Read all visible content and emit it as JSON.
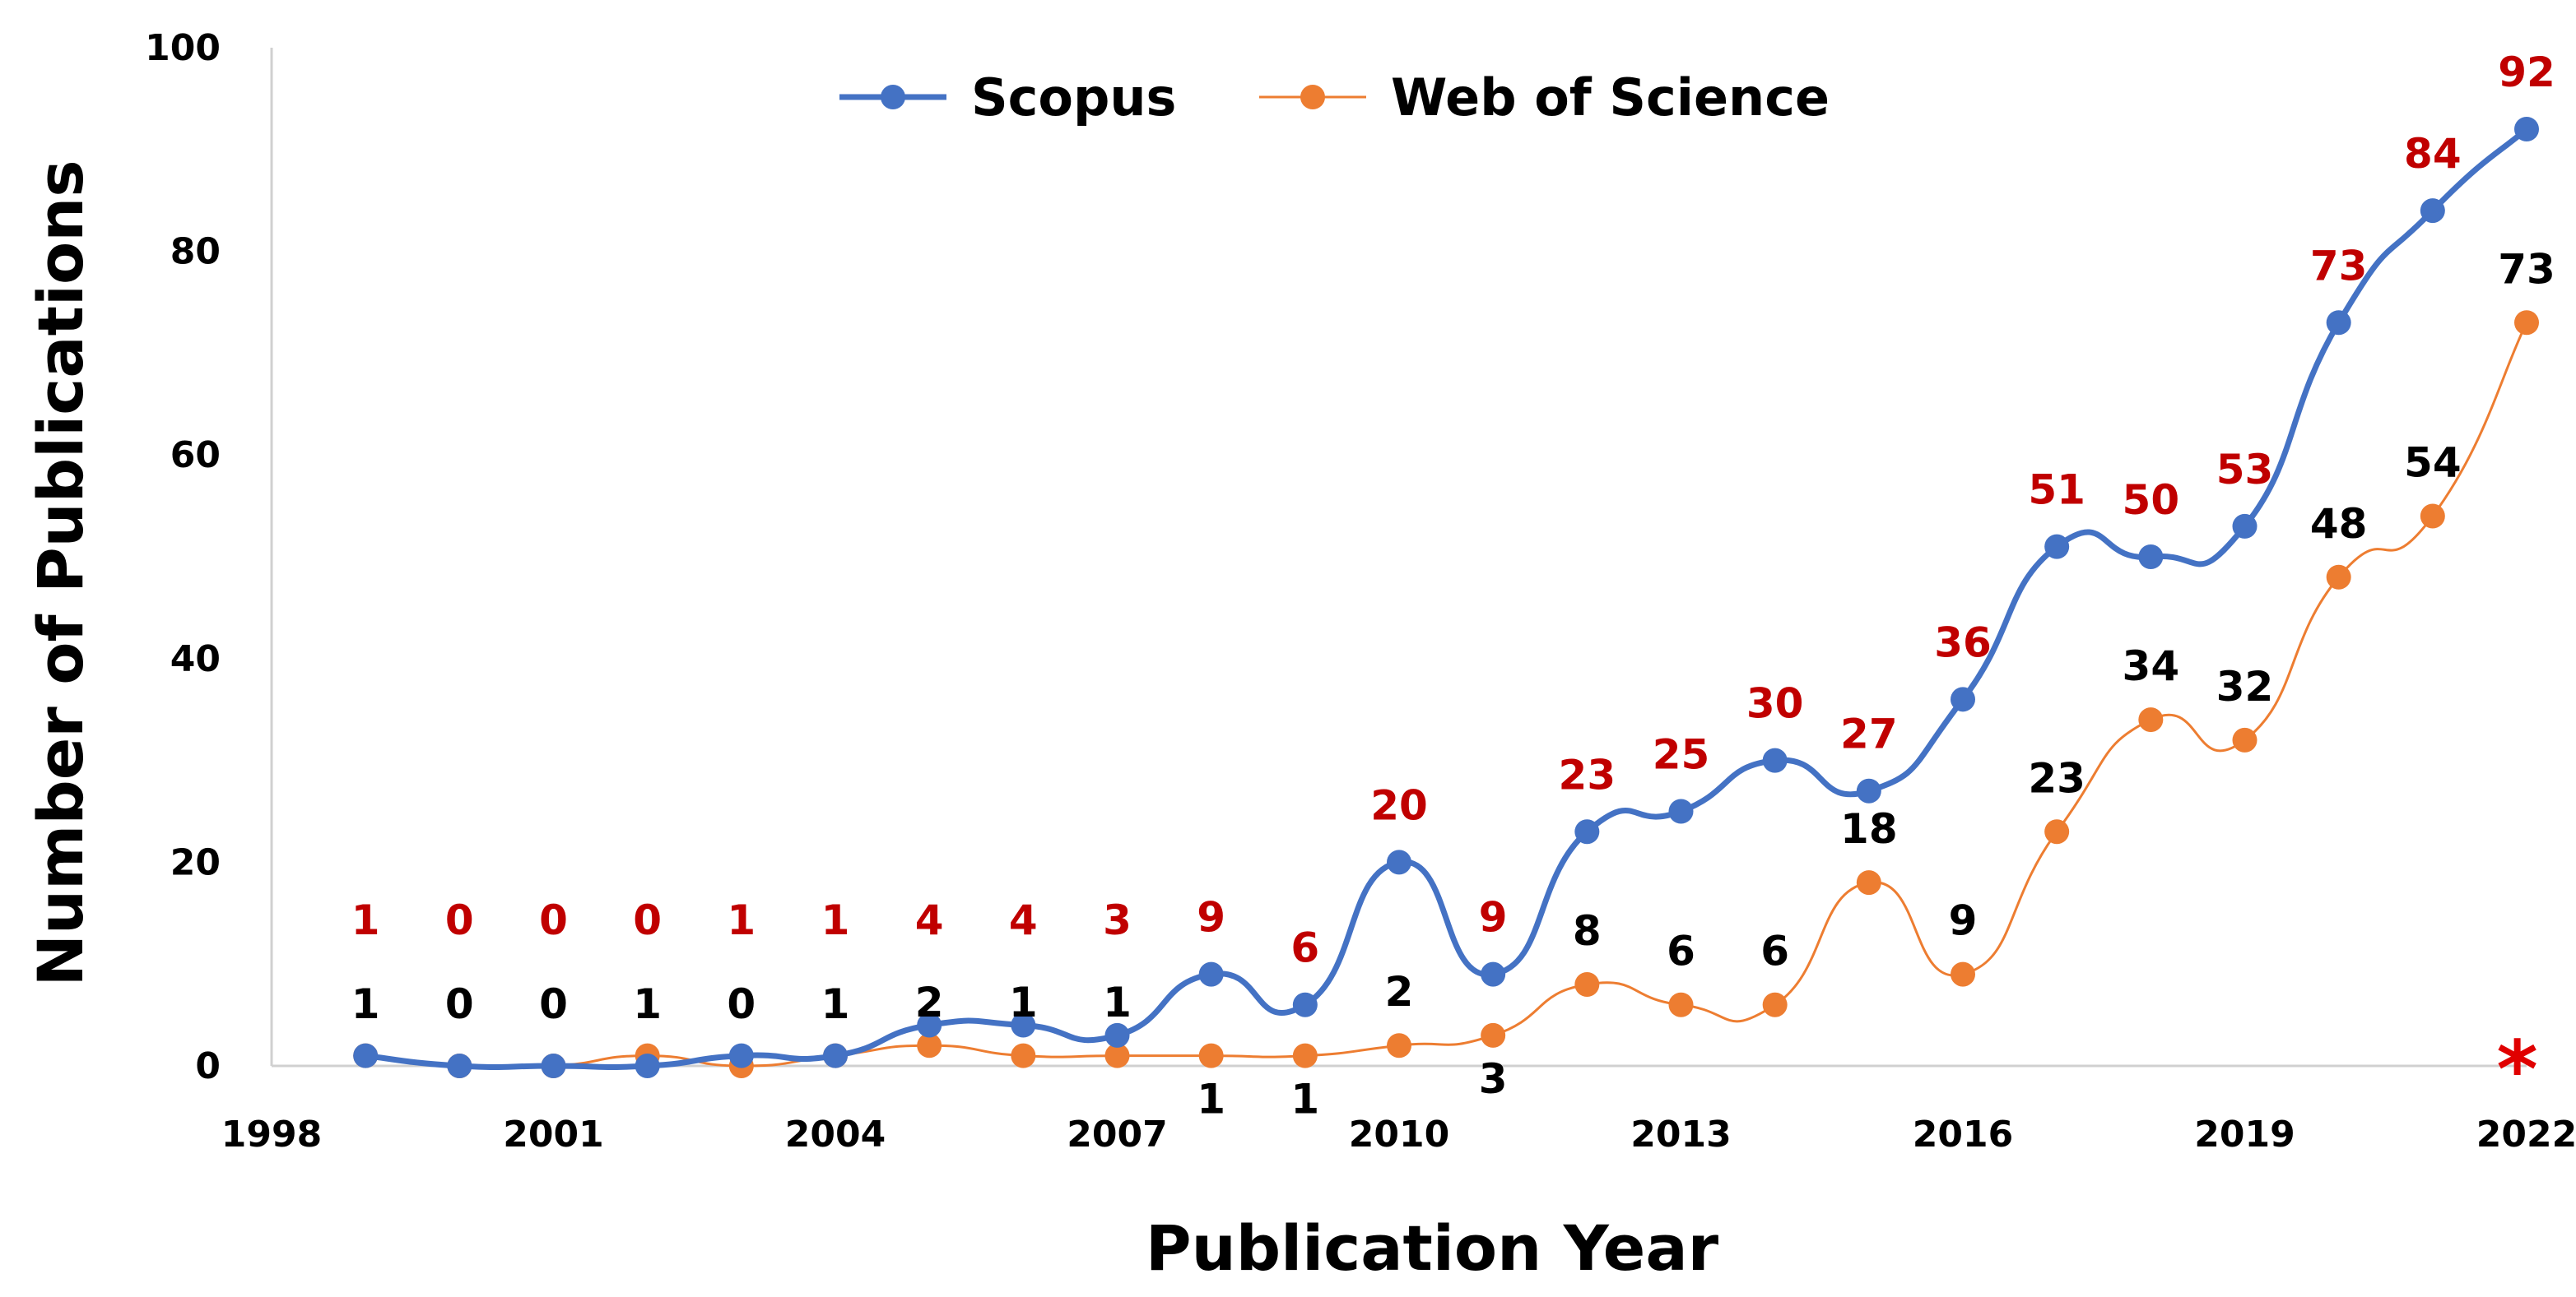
{
  "chart_data": {
    "type": "line",
    "xlabel": "Publication Year",
    "ylabel": "Number of Publications",
    "xlim": [
      1998,
      2022
    ],
    "ylim": [
      0,
      100
    ],
    "xticks": [
      1998,
      2001,
      2004,
      2007,
      2010,
      2013,
      2016,
      2019,
      2022
    ],
    "yticks": [
      0,
      20,
      40,
      60,
      80,
      100
    ],
    "grid": false,
    "legend_position": "top-center",
    "x": [
      1999,
      2000,
      2001,
      2002,
      2003,
      2004,
      2005,
      2006,
      2007,
      2008,
      2009,
      2010,
      2011,
      2012,
      2013,
      2014,
      2015,
      2016,
      2017,
      2018,
      2019,
      2020,
      2021,
      2022
    ],
    "series": [
      {
        "name": "Scopus",
        "color": "#4472c4",
        "label_color": "#c00000",
        "values": [
          1,
          0,
          0,
          0,
          1,
          1,
          4,
          4,
          3,
          9,
          6,
          20,
          9,
          23,
          25,
          30,
          27,
          36,
          51,
          50,
          53,
          73,
          84,
          92
        ],
        "labels": [
          "1",
          "0",
          "0",
          "0",
          "1",
          "1",
          "4",
          "4",
          "3",
          "9",
          "6",
          "20",
          "9",
          "23",
          "25",
          "30",
          "27",
          "36",
          "51",
          "50",
          "53",
          "73",
          "84",
          "92"
        ]
      },
      {
        "name": "Web of Science",
        "color": "#ed7d31",
        "label_color": "#000000",
        "values": [
          1,
          0,
          0,
          1,
          0,
          1,
          2,
          1,
          1,
          1,
          1,
          2,
          3,
          8,
          6,
          6,
          18,
          9,
          23,
          34,
          32,
          48,
          54,
          73
        ],
        "labels": [
          "1",
          "0",
          "0",
          "1",
          "0",
          "1",
          "2",
          "1",
          "1",
          "1",
          "1",
          "2",
          "3",
          "8",
          "6",
          "6",
          "18",
          "9",
          "23",
          "34",
          "32",
          "48",
          "54",
          "73"
        ]
      }
    ],
    "annotation": "*"
  }
}
